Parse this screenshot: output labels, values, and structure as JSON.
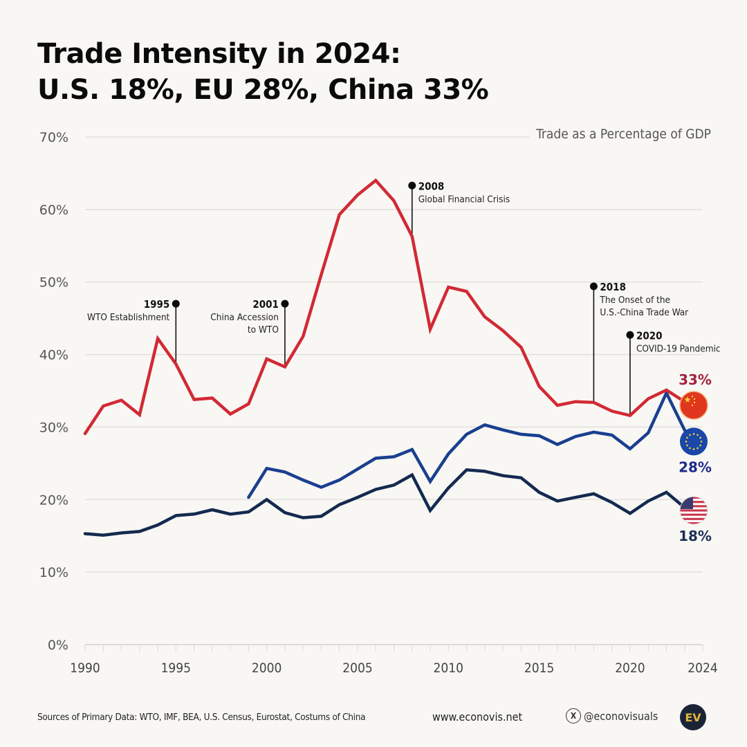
{
  "title_line1": "Trade Intensity in 2024:",
  "title_line2": "U.S. 18%, EU 28%, China 33%",
  "subtitle": "Trade as a Percentage of GDP",
  "footer": {
    "sources": "Sources of Primary Data: WTO, IMF, BEA, U.S. Census, Eurostat, Costums of China",
    "website": "www.econovis.net",
    "social_handle": "@econovisuals",
    "logo_text": "EV"
  },
  "colors": {
    "china": "#d12a35",
    "eu": "#1a3f8f",
    "us": "#142a4f",
    "china_label": "#a3243d",
    "eu_label": "#1e2a8a",
    "us_label": "#1b2f55"
  },
  "chart_data": {
    "type": "line",
    "title": "Trade Intensity in 2024: U.S. 18%, EU 28%, China 33%",
    "ylabel": "Trade as a Percentage of GDP",
    "xlabel": "",
    "xlim": [
      1990,
      2024
    ],
    "ylim": [
      0,
      70
    ],
    "yticks": [
      0,
      10,
      20,
      30,
      40,
      50,
      60,
      70
    ],
    "ytick_labels": [
      "0%",
      "10%",
      "20%",
      "30%",
      "40%",
      "50%",
      "60%",
      "70%"
    ],
    "xticks": [
      1990,
      1995,
      2000,
      2005,
      2010,
      2015,
      2020,
      2024
    ],
    "xtick_labels": [
      "1990",
      "1995",
      "2000",
      "2005",
      "2010",
      "2015",
      "2020",
      "2024"
    ],
    "grid": true,
    "series": [
      {
        "key": "china",
        "name": "China",
        "end_label": "33%",
        "flag": "china-flag",
        "x": [
          1990,
          1991,
          1992,
          1993,
          1994,
          1995,
          1996,
          1997,
          1998,
          1999,
          2000,
          2001,
          2002,
          2003,
          2004,
          2005,
          2006,
          2007,
          2008,
          2009,
          2010,
          2011,
          2012,
          2013,
          2014,
          2015,
          2016,
          2017,
          2018,
          2019,
          2020,
          2021,
          2022,
          2023,
          2024
        ],
        "values": [
          29.1,
          32.9,
          33.7,
          31.7,
          42.2,
          38.7,
          33.8,
          34.0,
          31.8,
          33.2,
          39.4,
          38.3,
          42.5,
          51.0,
          59.3,
          62.0,
          64.0,
          61.2,
          56.3,
          43.5,
          49.3,
          48.7,
          45.2,
          43.3,
          41.0,
          35.6,
          33.0,
          33.5,
          33.4,
          32.2,
          31.6,
          33.9,
          35.1,
          33.5,
          33.0
        ]
      },
      {
        "key": "eu",
        "name": "EU",
        "end_label": "28%",
        "flag": "eu-flag",
        "x": [
          1999,
          2000,
          2001,
          2002,
          2003,
          2004,
          2005,
          2006,
          2007,
          2008,
          2009,
          2010,
          2011,
          2012,
          2013,
          2014,
          2015,
          2016,
          2017,
          2018,
          2019,
          2020,
          2021,
          2022,
          2023,
          2024
        ],
        "values": [
          20.3,
          24.3,
          23.8,
          22.7,
          21.7,
          22.7,
          24.2,
          25.7,
          25.9,
          26.9,
          22.5,
          26.3,
          29.0,
          30.3,
          29.6,
          29.0,
          28.8,
          27.6,
          28.7,
          29.3,
          28.9,
          27.0,
          29.2,
          34.7,
          29.6,
          28.0
        ]
      },
      {
        "key": "us",
        "name": "U.S.",
        "end_label": "18%",
        "flag": "us-flag",
        "x": [
          1990,
          1991,
          1992,
          1993,
          1994,
          1995,
          1996,
          1997,
          1998,
          1999,
          2000,
          2001,
          2002,
          2003,
          2004,
          2005,
          2006,
          2007,
          2008,
          2009,
          2010,
          2011,
          2012,
          2013,
          2014,
          2015,
          2016,
          2017,
          2018,
          2019,
          2020,
          2021,
          2022,
          2023,
          2024
        ],
        "values": [
          15.3,
          15.1,
          15.4,
          15.6,
          16.5,
          17.8,
          18.0,
          18.6,
          18.0,
          18.3,
          20.0,
          18.2,
          17.5,
          17.7,
          19.3,
          20.3,
          21.4,
          22.0,
          23.4,
          18.5,
          21.6,
          24.1,
          23.9,
          23.3,
          23.0,
          21.0,
          19.8,
          20.3,
          20.8,
          19.6,
          18.1,
          19.8,
          21.0,
          18.9,
          18.5
        ]
      }
    ],
    "annotations": [
      {
        "year": 1995,
        "value": 38.7,
        "label_year": "1995",
        "text": [
          "WTO Establishment"
        ],
        "marker_value": 47,
        "side": "left"
      },
      {
        "year": 2001,
        "value": 38.3,
        "label_year": "2001",
        "text": [
          "China Accession",
          "to WTO"
        ],
        "marker_value": 47,
        "side": "left"
      },
      {
        "year": 2008,
        "value": 56.3,
        "label_year": "2008",
        "text": [
          "Global Financial Crisis"
        ],
        "marker_value": 63.3,
        "side": "right"
      },
      {
        "year": 2018,
        "value": 33.4,
        "label_year": "2018",
        "text": [
          "The Onset of the",
          "U.S.-China Trade War"
        ],
        "marker_value": 49.4,
        "side": "right"
      },
      {
        "year": 2020,
        "value": 31.6,
        "label_year": "2020",
        "text": [
          "COVID-19 Pandemic"
        ],
        "marker_value": 42.7,
        "side": "right"
      }
    ]
  }
}
